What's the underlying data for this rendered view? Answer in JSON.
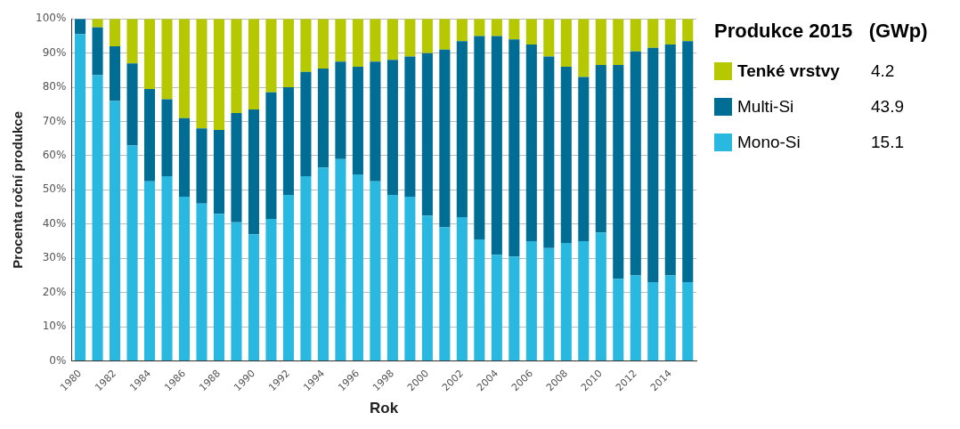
{
  "chart_data": {
    "type": "bar",
    "stacked": true,
    "xlabel": "Rok",
    "ylabel": "Procenta roční produkce",
    "legend_title": "Produkce 2015   (GWp)",
    "legend": "right",
    "grid": "y",
    "categories": [
      "1980",
      null,
      "1982",
      null,
      "1984",
      null,
      "1986",
      null,
      "1988",
      null,
      "1990",
      null,
      "1992",
      null,
      "1994",
      null,
      "1996",
      null,
      "1998",
      null,
      "2000",
      null,
      "2002",
      null,
      "2004",
      null,
      "2006",
      null,
      "2008",
      null,
      "2010",
      null,
      "2012",
      null,
      "2014",
      null
    ],
    "ylim": [
      0,
      100
    ],
    "yticks": [
      {
        "value": 0,
        "label": "0%"
      },
      {
        "value": 10,
        "label": "10%"
      },
      {
        "value": 20,
        "label": "20%"
      },
      {
        "value": 30,
        "label": "30%"
      },
      {
        "value": 40,
        "label": "40%"
      },
      {
        "value": 50,
        "label": "50%"
      },
      {
        "value": 60,
        "label": "60%"
      },
      {
        "value": 70,
        "label": "70%"
      },
      {
        "value": 80,
        "label": "80%"
      },
      {
        "value": 90,
        "label": "90%"
      },
      {
        "value": 100,
        "label": "100%"
      }
    ],
    "series": [
      {
        "name": "Mono-Si",
        "color": "#29b8e0",
        "values": [
          95.5,
          83.5,
          76,
          63,
          52.5,
          54,
          48,
          46,
          43,
          40.5,
          37,
          41.5,
          48.5,
          54,
          56.5,
          59,
          54.5,
          52.5,
          48.5,
          48,
          42.5,
          39,
          42,
          35.5,
          31,
          30.5,
          35,
          33,
          34.5,
          35,
          37.5,
          24,
          25,
          23,
          25,
          23
        ]
      },
      {
        "name": "Multi-Si",
        "color": "#006e94",
        "values": [
          4.5,
          14,
          16,
          24,
          27,
          22.5,
          23,
          22,
          24.5,
          32,
          36.5,
          37,
          31.5,
          30.5,
          29,
          28.5,
          31.5,
          35,
          39.5,
          41,
          47.5,
          52,
          51.5,
          59.5,
          64,
          63.5,
          57.5,
          56,
          51.5,
          48,
          49,
          62.5,
          65.5,
          68.5,
          67.5,
          70.5
        ]
      },
      {
        "name": "Tenké vrstvy",
        "color": "#b5c800",
        "values": [
          0,
          2.5,
          8,
          13,
          20.5,
          23.5,
          29,
          32,
          32.5,
          27.5,
          26.5,
          21.5,
          20,
          15.5,
          14.5,
          12.5,
          14,
          12.5,
          12,
          11,
          10,
          9,
          6.5,
          5,
          5,
          6,
          7.5,
          11,
          14,
          17,
          13.5,
          13.5,
          9.5,
          8.5,
          7.5,
          6.5
        ]
      }
    ],
    "annotations": [
      "15.1",
      "43.9",
      "4.2"
    ]
  }
}
